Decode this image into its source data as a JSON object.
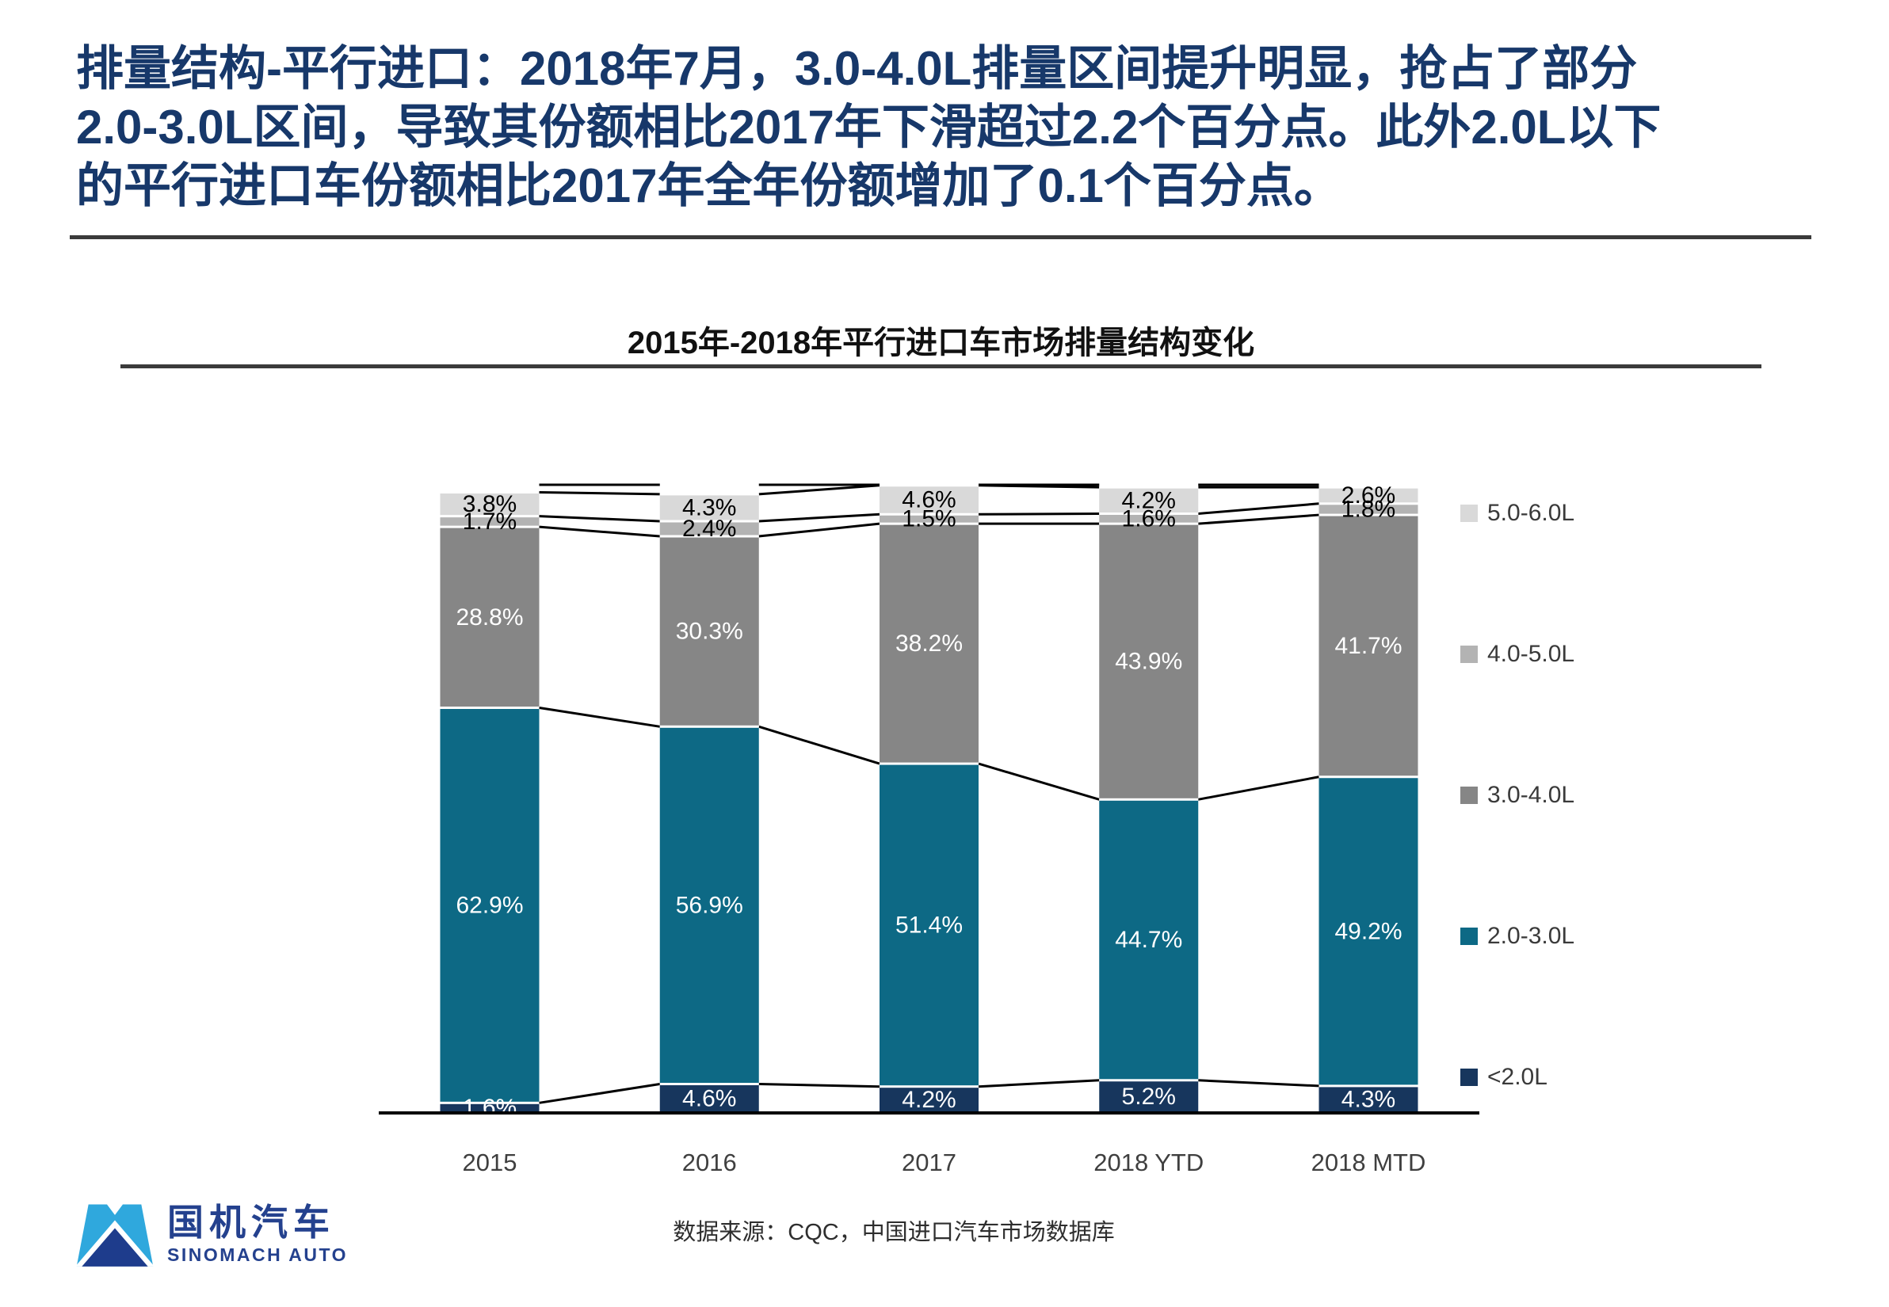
{
  "slide": {
    "title_lines": [
      "排量结构-平行进口：2018年7月，3.0-4.0L排量区间提升明显，抢占了部分",
      "2.0-3.0L区间，导致其份额相比2017年下滑超过2.2个百分点。此外2.0L以下",
      "的平行进口车份额相比2017年全年份额增加了0.1个百分点。"
    ],
    "source": "数据来源：CQC，中国进口汽车市场数据库",
    "logo": {
      "cn": "国机汽车",
      "en": "SINOMACH AUTO"
    }
  },
  "chart_data": {
    "type": "bar",
    "subtype": "stacked-100",
    "title": "2015年-2018年平行进口车市场排量结构变化",
    "categories": [
      "2015",
      "2016",
      "2017",
      "2018 YTD",
      "2018 MTD"
    ],
    "series": [
      {
        "name": "<2.0L",
        "color": "#17365d",
        "label_color": "#ffffff",
        "values": [
          1.6,
          4.6,
          4.2,
          5.2,
          4.3
        ]
      },
      {
        "name": "2.0-3.0L",
        "color": "#0d6985",
        "label_color": "#ffffff",
        "values": [
          62.9,
          56.9,
          51.4,
          44.7,
          49.2
        ]
      },
      {
        "name": "3.0-4.0L",
        "color": "#868686",
        "label_color": "#ffffff",
        "values": [
          28.8,
          30.3,
          38.2,
          43.9,
          41.7
        ]
      },
      {
        "name": "4.0-5.0L",
        "color": "#b3b3b3",
        "label_color": "#000000",
        "values": [
          1.7,
          2.4,
          1.5,
          1.6,
          1.8
        ]
      },
      {
        "name": "5.0-6.0L",
        "color": "#d9d9d9",
        "label_color": "#000000",
        "values": [
          3.8,
          4.3,
          4.6,
          4.2,
          2.6
        ]
      }
    ],
    "value_suffix": "%",
    "ylim": [
      0,
      100
    ],
    "grid": false,
    "legend_position": "right",
    "connector_lines": true,
    "axis_line_color": "#000000",
    "category_label_color": "#3f3f3f"
  }
}
